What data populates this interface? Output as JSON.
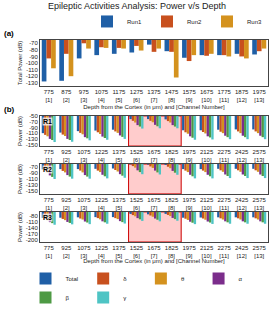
{
  "chart_data": [
    {
      "type": "bar",
      "title": "Epileptic Activities Analysis: Power v/s Depth",
      "annotations": [
        "(a)"
      ],
      "xlabel": "Depth from the Cortex (in μm) and [Channel Number]",
      "ylabel": "Total Power (dB)",
      "categories": [
        "775\n[1]",
        "875\n[2]",
        "975\n[3]",
        "1075\n[4]",
        "1175\n[5]",
        "1275\n[6]",
        "1375\n[7]",
        "1475\n[8]",
        "1575\n[9]",
        "1675\n[10]",
        "1775\n[11]",
        "1875\n[12]",
        "1975\n[13]"
      ],
      "series": [
        {
          "name": "Run1",
          "color": "#1f5fa6",
          "values": [
            -128,
            -127,
            -93,
            -88,
            -86,
            -84,
            -72,
            -82,
            -92,
            -88,
            -88,
            -86,
            -87
          ]
        },
        {
          "name": "Run2",
          "color": "#c8501e",
          "values": [
            -93,
            -86,
            -70,
            -76,
            -77,
            -74,
            -83,
            -83,
            -97,
            -89,
            -88,
            -90,
            -82
          ]
        },
        {
          "name": "Run3",
          "color": "#d4921e",
          "values": [
            -108,
            -120,
            -78,
            -77,
            -78,
            -81,
            -78,
            -122,
            -88,
            -86,
            -90,
            -93,
            -78
          ]
        }
      ],
      "ylim": [
        -135,
        -65
      ],
      "yticks": [
        -130,
        -120,
        -110,
        -100,
        -90,
        -80,
        -70
      ],
      "grid": false,
      "legend": "upper right"
    },
    {
      "type": "bar",
      "annotations": [
        "(b)",
        "R1"
      ],
      "ylabel": "Power (dB)",
      "categories": [
        "775\n[1]",
        "925\n[2]",
        "1075\n[3]",
        "1225\n[4]",
        "1375\n[5]",
        "1525\n[6]",
        "1675\n[7]",
        "1825\n[8]",
        "1975\n[9]",
        "2125\n[10]",
        "2275\n[11]",
        "2425\n[12]",
        "2575\n[13]"
      ],
      "series": [
        {
          "name": "Total",
          "color": "#1f5fa6",
          "values": [
            -110,
            -108,
            -103,
            -101,
            -98,
            -61,
            -61,
            -62,
            -100,
            -100,
            -98,
            -97,
            -97
          ]
        },
        {
          "name": "δ",
          "color": "#c8501e",
          "values": [
            -116,
            -115,
            -109,
            -107,
            -104,
            -67,
            -67,
            -68,
            -107,
            -106,
            -105,
            -104,
            -104
          ]
        },
        {
          "name": "θ",
          "color": "#d4921e",
          "values": [
            -121,
            -120,
            -114,
            -113,
            -109,
            -73,
            -72,
            -73,
            -112,
            -111,
            -110,
            -110,
            -110
          ]
        },
        {
          "name": "α",
          "color": "#7b2d8b",
          "values": [
            -130,
            -130,
            -124,
            -122,
            -118,
            -82,
            -81,
            -82,
            -121,
            -121,
            -119,
            -119,
            -119
          ]
        },
        {
          "name": "β",
          "color": "#4e9a44",
          "values": [
            -134,
            -134,
            -128,
            -127,
            -123,
            -87,
            -86,
            -87,
            -126,
            -125,
            -124,
            -124,
            -124
          ]
        },
        {
          "name": "γ",
          "color": "#4ec4c4",
          "values": [
            -141,
            -140,
            -135,
            -133,
            -130,
            -94,
            -93,
            -93,
            -133,
            -132,
            -131,
            -131,
            -131
          ]
        }
      ],
      "ylim": [
        -155,
        -50
      ],
      "yticks": [
        -150,
        -130,
        -110,
        -90,
        -70,
        -50
      ],
      "grid": false,
      "highlight": {
        "start": 4.55,
        "end": 7.55,
        "color": "#ffcccc",
        "edge_color": "#cc0000"
      }
    },
    {
      "type": "bar",
      "annotations": [
        "R2"
      ],
      "ylabel": "Power (dB)",
      "categories": [
        "775\n[1]",
        "925\n[2]",
        "1075\n[3]",
        "1225\n[4]",
        "1375\n[5]",
        "1525\n[6]",
        "1675\n[7]",
        "1825\n[8]",
        "1975\n[9]",
        "2125\n[10]",
        "2275\n[11]",
        "2425\n[12]",
        "2575\n[13]"
      ],
      "series": [
        {
          "name": "Total",
          "color": "#1f5fa6",
          "values": [
            -78,
            -77,
            -77,
            -76,
            -75,
            -61,
            -62,
            -63,
            -77,
            -77,
            -76,
            -76,
            -76
          ]
        },
        {
          "name": "δ",
          "color": "#c8501e",
          "values": [
            -84,
            -83,
            -82,
            -82,
            -80,
            -67,
            -68,
            -69,
            -82,
            -82,
            -81,
            -81,
            -81
          ]
        },
        {
          "name": "θ",
          "color": "#d4921e",
          "values": [
            -89,
            -88,
            -88,
            -87,
            -85,
            -72,
            -73,
            -74,
            -87,
            -87,
            -86,
            -86,
            -86
          ]
        },
        {
          "name": "α",
          "color": "#7b2d8b",
          "values": [
            -98,
            -97,
            -97,
            -96,
            -94,
            -81,
            -82,
            -83,
            -96,
            -96,
            -95,
            -95,
            -95
          ]
        },
        {
          "name": "β",
          "color": "#4e9a44",
          "values": [
            -103,
            -102,
            -102,
            -101,
            -99,
            -87,
            -88,
            -89,
            -101,
            -101,
            -100,
            -100,
            -100
          ]
        },
        {
          "name": "γ",
          "color": "#4ec4c4",
          "values": [
            -110,
            -109,
            -109,
            -108,
            -106,
            -94,
            -95,
            -96,
            -108,
            -108,
            -107,
            -107,
            -107
          ]
        }
      ],
      "ylim": [
        -160,
        -60
      ],
      "yticks": [
        -150,
        -130,
        -110,
        -90,
        -70
      ],
      "grid": false,
      "highlight": {
        "start": 4.55,
        "end": 7.55,
        "color": "#ffcccc",
        "edge_color": "#cc0000"
      }
    },
    {
      "type": "bar",
      "annotations": [
        "R3"
      ],
      "xlabel": "Depth from the Cortex (in μm) and [Channel Number]",
      "ylabel": "Power (dB)",
      "categories": [
        "775\n[1]",
        "925\n[2]",
        "1075\n[3]",
        "1225\n[4]",
        "1375\n[5]",
        "1525\n[6]",
        "1675\n[7]",
        "1825\n[8]",
        "1975\n[9]",
        "2125\n[10]",
        "2275\n[11]",
        "2425\n[12]",
        "2575\n[13]"
      ],
      "series": [
        {
          "name": "Total",
          "color": "#1f5fa6",
          "values": [
            -90,
            -89,
            -87,
            -86,
            -86,
            -70,
            -72,
            -70,
            -89,
            -88,
            -87,
            -87,
            -87
          ]
        },
        {
          "name": "δ",
          "color": "#c8501e",
          "values": [
            -96,
            -95,
            -93,
            -91,
            -91,
            -76,
            -78,
            -75,
            -94,
            -93,
            -92,
            -92,
            -92
          ]
        },
        {
          "name": "θ",
          "color": "#d4921e",
          "values": [
            -102,
            -101,
            -98,
            -97,
            -96,
            -82,
            -84,
            -81,
            -100,
            -99,
            -98,
            -98,
            -98
          ]
        },
        {
          "name": "α",
          "color": "#7b2d8b",
          "values": [
            -111,
            -110,
            -108,
            -107,
            -106,
            -91,
            -93,
            -90,
            -109,
            -108,
            -107,
            -107,
            -107
          ]
        },
        {
          "name": "β",
          "color": "#4e9a44",
          "values": [
            -116,
            -115,
            -113,
            -112,
            -111,
            -97,
            -99,
            -96,
            -114,
            -113,
            -112,
            -112,
            -112
          ]
        },
        {
          "name": "γ",
          "color": "#4ec4c4",
          "values": [
            -124,
            -122,
            -121,
            -119,
            -118,
            -105,
            -107,
            -104,
            -121,
            -120,
            -119,
            -119,
            -119
          ]
        }
      ],
      "ylim": [
        -210,
        -60
      ],
      "yticks": [
        -200,
        -170,
        -140,
        -110,
        -80
      ],
      "grid": false,
      "highlight": {
        "start": 4.55,
        "end": 7.55,
        "color": "#ffcccc",
        "edge_color": "#cc0000"
      },
      "legend": "lower center"
    }
  ]
}
